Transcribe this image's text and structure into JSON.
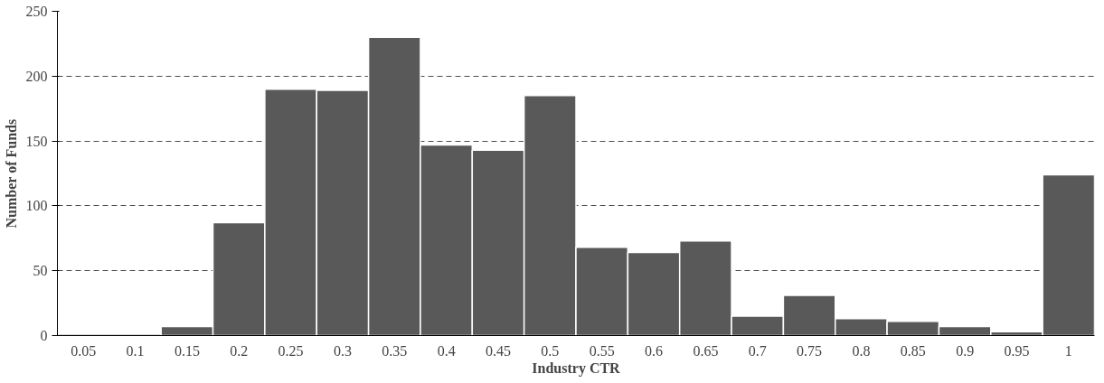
{
  "chart_data": {
    "type": "bar",
    "xlabel": "Industry CTR",
    "ylabel": "Number of Funds",
    "categories": [
      "0.05",
      "0.1",
      "0.15",
      "0.2",
      "0.25",
      "0.3",
      "0.35",
      "0.4",
      "0.45",
      "0.5",
      "0.55",
      "0.6",
      "0.65",
      "0.7",
      "0.75",
      "0.8",
      "0.85",
      "0.9",
      "0.95",
      "1"
    ],
    "values": [
      0,
      0,
      7,
      87,
      190,
      189,
      230,
      147,
      143,
      185,
      68,
      64,
      73,
      15,
      31,
      13,
      11,
      7,
      3,
      124
    ],
    "color": "#595959",
    "ylim": [
      0,
      250
    ],
    "yticks": [
      0,
      50,
      100,
      150,
      200,
      250
    ],
    "grid": "y",
    "line_style": "dashed"
  }
}
